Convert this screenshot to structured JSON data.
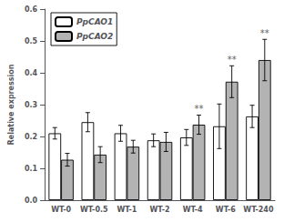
{
  "chart_data": {
    "type": "bar",
    "categories": [
      "WT-0",
      "WT-0.5",
      "WT-1",
      "WT-2",
      "WT-4",
      "WT-6",
      "WT-240"
    ],
    "series": [
      {
        "name": "PpCAO1",
        "color": "#ffffff",
        "values": [
          0.21,
          0.245,
          0.21,
          0.188,
          0.197,
          0.232,
          0.263
        ],
        "errors": [
          0.018,
          0.03,
          0.025,
          0.02,
          0.025,
          0.07,
          0.035
        ]
      },
      {
        "name": "PpCAO2",
        "color": "#b3b3b3",
        "values": [
          0.127,
          0.143,
          0.168,
          0.183,
          0.237,
          0.372,
          0.44
        ],
        "errors": [
          0.02,
          0.025,
          0.02,
          0.03,
          0.03,
          0.05,
          0.065
        ]
      }
    ],
    "ylabel": "Relative expression",
    "ylim": [
      0.0,
      0.6
    ],
    "yticks": [
      {
        "value": 0.0,
        "label": "0.0"
      },
      0.1,
      0.2,
      0.3,
      0.4,
      0.5,
      0.6
    ],
    "annotations": [
      {
        "text": "**",
        "category": "WT-4",
        "series": "PpCAO2"
      },
      {
        "text": "**",
        "category": "WT-6",
        "series": "PpCAO2"
      },
      {
        "text": "**",
        "category": "WT-240",
        "series": "PpCAO2"
      }
    ],
    "legend": "upper left",
    "grid": false
  }
}
